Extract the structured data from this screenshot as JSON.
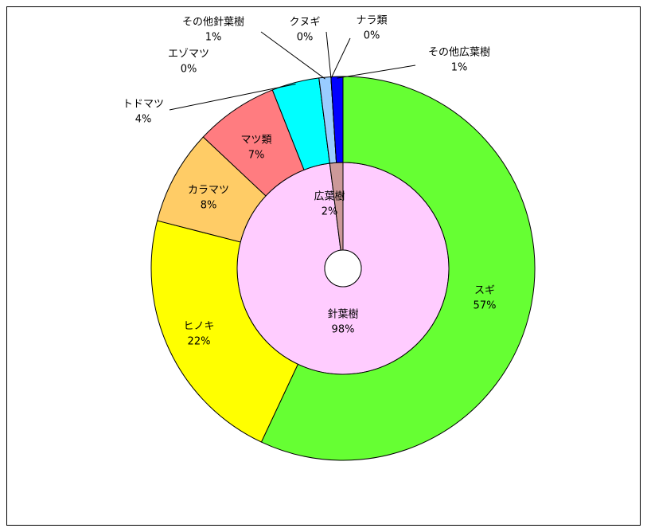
{
  "chart_data": {
    "type": "donut",
    "rings": [
      {
        "categories": [
          "針葉樹",
          "広葉樹"
        ],
        "values": [
          98,
          2
        ],
        "value_labels": [
          "98%",
          "2%"
        ],
        "colors": [
          "#ffccff",
          "#cc9999"
        ]
      },
      {
        "categories": [
          "スギ",
          "ヒノキ",
          "カラマツ",
          "マツ類",
          "トドマツ",
          "エゾマツ",
          "その他針葉樹",
          "クヌギ",
          "ナラ類",
          "その他広葉樹"
        ],
        "values": [
          57,
          22,
          8,
          7,
          4,
          0,
          1,
          0,
          0,
          1
        ],
        "value_labels": [
          "57%",
          "22%",
          "8%",
          "7%",
          "4%",
          "0%",
          "1%",
          "0%",
          "0%",
          "1%"
        ],
        "colors": [
          "#66ff33",
          "#ffff00",
          "#ffcc66",
          "#ff7c80",
          "#00ffff",
          "#3366ff",
          "#99ccff",
          "#996633",
          "#cc99ff",
          "#0000ff"
        ]
      }
    ]
  }
}
